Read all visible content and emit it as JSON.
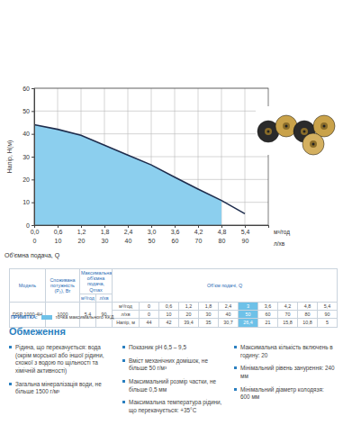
{
  "chart_data": {
    "type": "line",
    "y_label": "Напір, H(м)",
    "x_label": "Об'ємна подача, Q",
    "x_unit": "м³/год",
    "x2_unit": "л/хв",
    "x": [
      0,
      0.6,
      1.2,
      1.8,
      2.4,
      3,
      3.6,
      4.2,
      4.8,
      5.4
    ],
    "series": [
      {
        "type": "area",
        "color": "#8ccfee",
        "values": [
          44,
          42,
          39.4,
          35,
          30.7,
          26.4,
          21,
          15.8,
          10.8,
          null
        ]
      },
      {
        "type": "line",
        "color": "#1f2d4d",
        "values": [
          44,
          42,
          39.4,
          35,
          30.7,
          26.4,
          21,
          15.8,
          10.8,
          5
        ]
      }
    ],
    "xlim": [
      0,
      6
    ],
    "xticks": [
      {
        "value": 0,
        "label": "0,0"
      },
      {
        "value": 0.6,
        "label": "0,6"
      },
      {
        "value": 1.2,
        "label": "1,2"
      },
      {
        "value": 1.8,
        "label": "1,8"
      },
      {
        "value": 2.4,
        "label": "2,4"
      },
      {
        "value": 3,
        "label": "3,0"
      },
      {
        "value": 3.6,
        "label": "3,6"
      },
      {
        "value": 4.2,
        "label": "4,2"
      },
      {
        "value": 4.8,
        "label": "4,8"
      },
      {
        "value": 5.4,
        "label": "5,4"
      }
    ],
    "x2lim": [
      0,
      100
    ],
    "x2ticks": [
      0,
      10,
      20,
      30,
      40,
      50,
      60,
      70,
      80,
      90
    ],
    "ylim": [
      0,
      60
    ],
    "yticks": [
      0,
      10,
      20,
      30,
      40,
      50,
      60
    ],
    "grid": true
  },
  "table": {
    "header": {
      "model": "Модель",
      "power": "Споживана потужність (P₂), Вт",
      "qmax": "Максимальна об'ємна подача, Qmax",
      "flow": "Об'єм подачі, Q",
      "qmax_units": [
        "м³/год",
        "л/хв"
      ]
    },
    "row": {
      "model": "DSP 1000-4H",
      "power": "1000",
      "qmax": [
        "5,4",
        "90"
      ]
    },
    "flow_rows": [
      {
        "label": "м³/год",
        "cells": [
          "0",
          "0,6",
          "1,2",
          "1,8",
          "2,4",
          "3",
          "3,6",
          "4,2",
          "4,8",
          "5,4"
        ]
      },
      {
        "label": "л/хв",
        "cells": [
          "0",
          "10",
          "20",
          "30",
          "40",
          "50",
          "60",
          "70",
          "80",
          "90"
        ]
      },
      {
        "label": "Напір, м",
        "cells": [
          "44",
          "42",
          "39,4",
          "35",
          "30,7",
          "26,4",
          "21",
          "15,8",
          "10,8",
          "5"
        ]
      }
    ],
    "highlight_column": 5
  },
  "note": {
    "label": "ПРИМІТКА:",
    "text": "точка максимального ККД",
    "color": "#6ec1e8"
  },
  "restrictions": {
    "title": "Обмеження",
    "columns": [
      [
        "Рідина, що перекачується: вода (окрім морської або іншої рідини, схожої з водою по щільності та хімічній активності)",
        "Загальна мінералізація води, не більше 1500 г/м³"
      ],
      [
        "Показник pH 6,5 – 9,5",
        "Вміст механічних домішок, не більше 50 г/м³",
        "Максимальний розмір частки, не більше 0,5 мм",
        "Максимальна температура рідини, що перекачується: +35°С"
      ],
      [
        "Максимальна кількість включень в годину: 20",
        "Мінімальний рівень занурення: 240 мм",
        "Мінімальний діаметр колодязя: 600 мм"
      ]
    ]
  }
}
